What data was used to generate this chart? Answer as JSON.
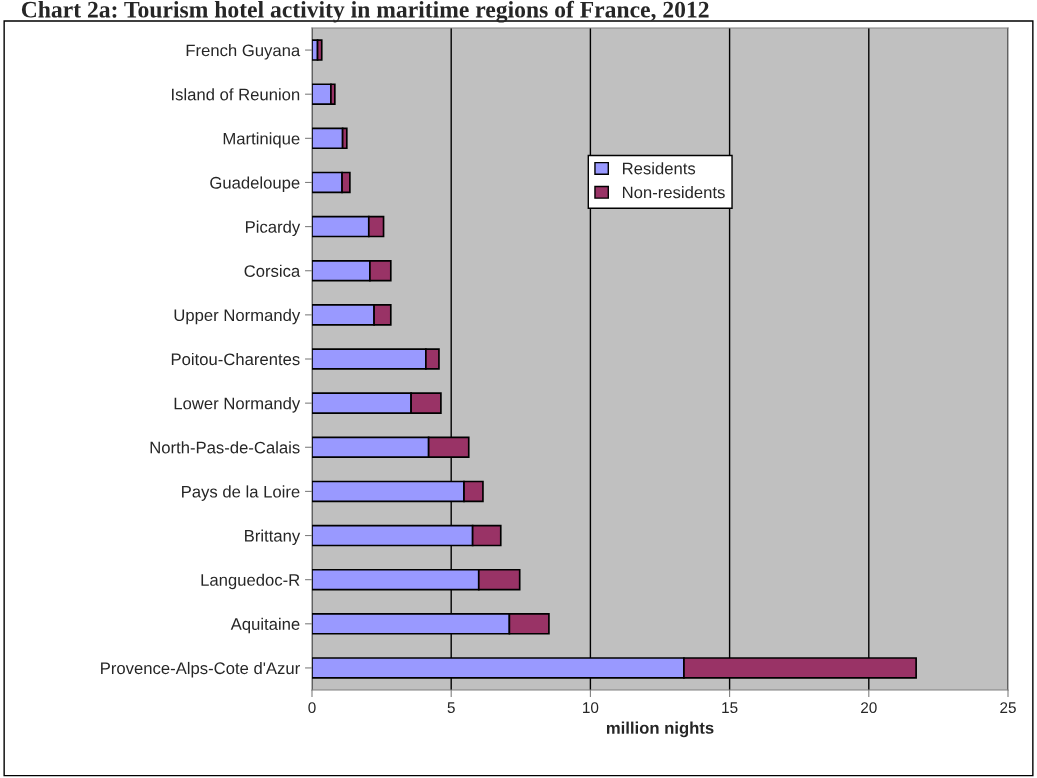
{
  "chart_data": {
    "type": "bar",
    "orientation": "horizontal",
    "stacked": true,
    "title": "Chart 2a: Tourism hotel activity in maritime regions of France, 2012",
    "xlabel": "million nights",
    "categories": [
      "French Guyana",
      "Island of Reunion",
      "Martinique",
      "Guadeloupe",
      "Picardy",
      "Corsica",
      "Upper Normandy",
      "Poitou-Charentes",
      "Lower Normandy",
      "North-Pas-de-Calais",
      "Pays de la Loire",
      "Brittany",
      "Languedoc-R",
      "Aquitaine",
      "Provence-Alps-Cote d'Azur"
    ],
    "series": [
      {
        "name": "Residents",
        "color": "#9999ff",
        "values": [
          0.2,
          0.68,
          1.1,
          1.08,
          2.04,
          2.08,
          2.23,
          4.09,
          3.56,
          4.19,
          5.46,
          5.77,
          5.99,
          7.09,
          13.36
        ]
      },
      {
        "name": "Non-residents",
        "color": "#993366",
        "values": [
          0.15,
          0.14,
          0.15,
          0.28,
          0.53,
          0.75,
          0.6,
          0.47,
          1.07,
          1.44,
          0.68,
          1.01,
          1.47,
          1.42,
          8.34
        ]
      }
    ],
    "xlim": [
      0,
      25
    ],
    "xticks": [
      0,
      5,
      10,
      15,
      20,
      25
    ],
    "grid": "x",
    "legend": "top"
  }
}
